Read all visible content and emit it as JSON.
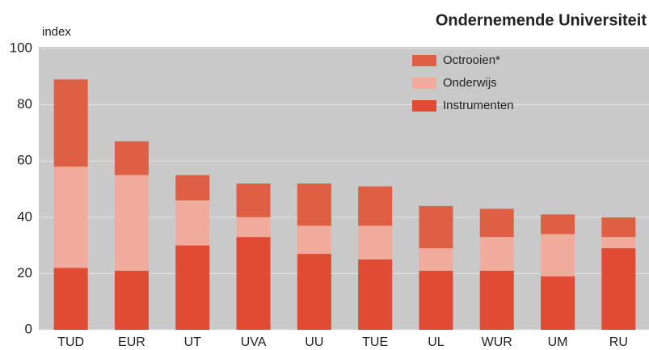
{
  "chart_data": {
    "type": "stacked_bar",
    "title": "Ondernemende Universiteit",
    "y_label": "index",
    "categories": [
      "TUD",
      "EUR",
      "UT",
      "UVA",
      "UU",
      "TUE",
      "UL",
      "WUR",
      "UM",
      "RU"
    ],
    "series": [
      {
        "name": "Octrooien*",
        "color": "#df5f45",
        "values": [
          31,
          12,
          9,
          12,
          15,
          14,
          15,
          10,
          7,
          7
        ]
      },
      {
        "name": "Onderwijs",
        "color": "#f1ab9c",
        "values": [
          36,
          34,
          16,
          7,
          10,
          12,
          8,
          12,
          15,
          4
        ]
      },
      {
        "name": "Instrumenten",
        "color": "#e04b33",
        "values": [
          22,
          21,
          30,
          33,
          27,
          25,
          21,
          21,
          19,
          29
        ]
      }
    ],
    "ylim": [
      0,
      100
    ],
    "yticks": [
      0,
      20,
      40,
      60,
      80,
      100
    ],
    "grid": true,
    "legend": "top-right"
  }
}
